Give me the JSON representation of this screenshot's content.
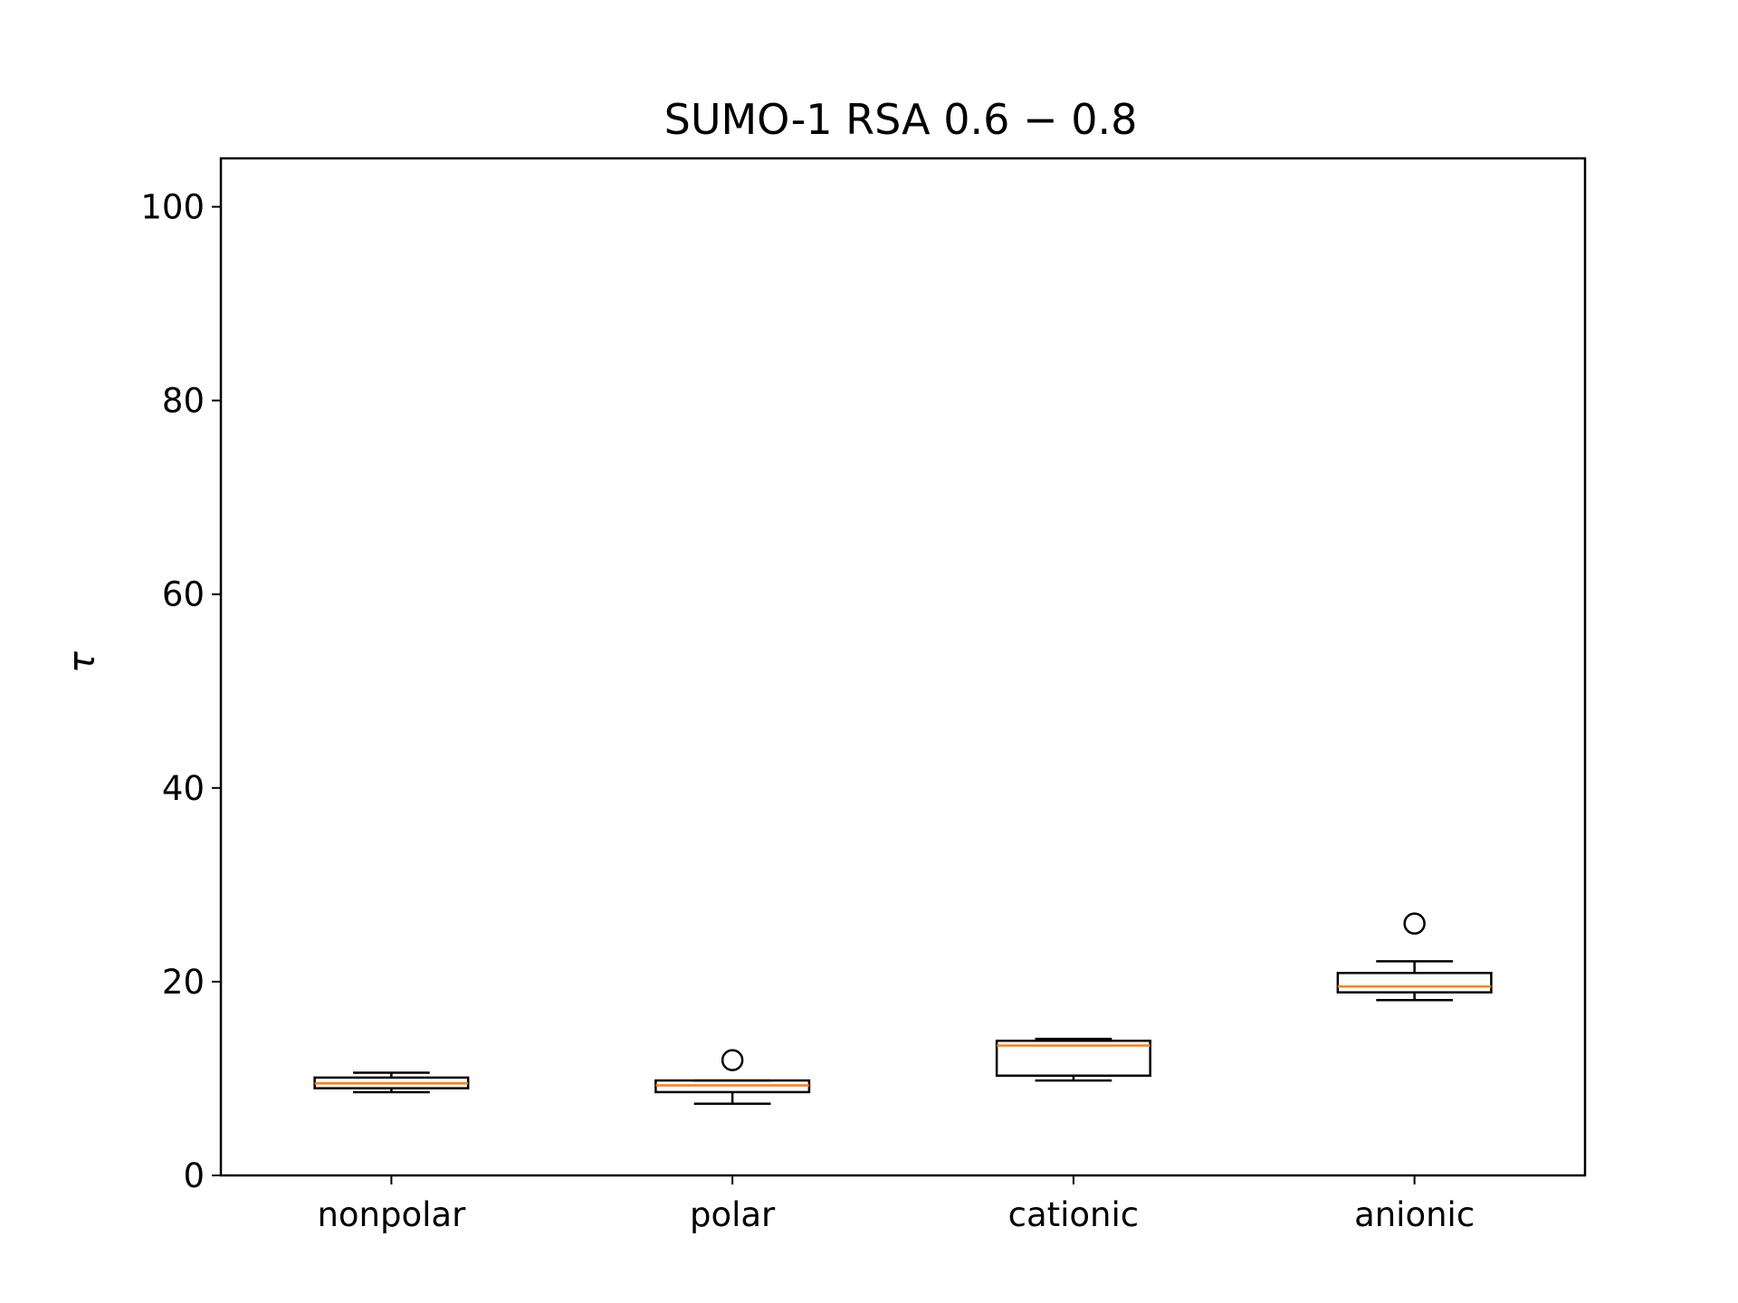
{
  "chart_data": {
    "type": "box",
    "title": "SUMO-1 RSA 0.6 − 0.8",
    "xlabel": "",
    "ylabel": "τ",
    "ylim": [
      0,
      105
    ],
    "yticks": [
      0,
      20,
      40,
      60,
      80,
      100
    ],
    "grid": false,
    "colors": {
      "box": "#000000",
      "median": "#ff7f0e",
      "background": "#ffffff"
    },
    "categories": [
      "nonpolar",
      "polar",
      "cationic",
      "anionic"
    ],
    "boxes": [
      {
        "category": "nonpolar",
        "whisker_low": 8.6,
        "q1": 9.0,
        "median": 9.5,
        "q3": 10.1,
        "whisker_high": 10.6,
        "outliers": []
      },
      {
        "category": "polar",
        "whisker_low": 7.4,
        "q1": 8.6,
        "median": 9.3,
        "q3": 9.8,
        "whisker_high": 9.8,
        "outliers": [
          11.9
        ]
      },
      {
        "category": "cationic",
        "whisker_low": 9.8,
        "q1": 10.3,
        "median": 13.4,
        "q3": 13.9,
        "whisker_high": 14.1,
        "outliers": []
      },
      {
        "category": "anionic",
        "whisker_low": 18.1,
        "q1": 18.9,
        "median": 19.5,
        "q3": 20.9,
        "whisker_high": 22.1,
        "outliers": [
          26.0
        ]
      }
    ]
  }
}
